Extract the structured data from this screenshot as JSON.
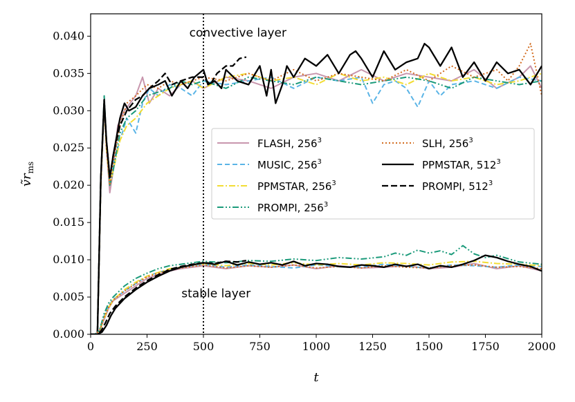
{
  "chart_data": {
    "type": "line",
    "xlabel": "t",
    "ylabel": "ṽrms",
    "xlim": [
      0,
      2000
    ],
    "ylim": [
      0,
      0.043
    ],
    "xticks": [
      0,
      250,
      500,
      750,
      1000,
      1250,
      1500,
      1750,
      2000
    ],
    "xtick_labels": [
      "0",
      "250",
      "500",
      "750",
      "1000",
      "1250",
      "1500",
      "1750",
      "2000"
    ],
    "yticks": [
      0.0,
      0.005,
      0.01,
      0.015,
      0.02,
      0.025,
      0.03,
      0.035,
      0.04
    ],
    "ytick_labels": [
      "0.000",
      "0.005",
      "0.010",
      "0.015",
      "0.020",
      "0.025",
      "0.030",
      "0.035",
      "0.040"
    ],
    "vline_x": 500,
    "annotations": [
      {
        "text": "convective layer",
        "x": 545,
        "y": 0.0405
      },
      {
        "text": "stable layer",
        "x": 510,
        "y": 0.0055
      }
    ],
    "legend_position": "center-right",
    "grid": false,
    "series": [
      {
        "name": "FLASH, 256",
        "sup": "3",
        "layer": "convective",
        "color": "#c896ad",
        "dash": "solid",
        "x": [
          0,
          30,
          45,
          60,
          70,
          85,
          100,
          120,
          150,
          200,
          230,
          260,
          300,
          350,
          400,
          450,
          500,
          600,
          700,
          800,
          900,
          1000,
          1100,
          1200,
          1300,
          1400,
          1500,
          1600,
          1700,
          1800,
          1900,
          1950,
          2000
        ],
        "y": [
          0,
          0,
          0.02,
          0.031,
          0.025,
          0.019,
          0.022,
          0.028,
          0.03,
          0.032,
          0.0345,
          0.031,
          0.033,
          0.032,
          0.0335,
          0.034,
          0.033,
          0.0345,
          0.034,
          0.033,
          0.0345,
          0.035,
          0.034,
          0.0355,
          0.034,
          0.035,
          0.0345,
          0.034,
          0.0355,
          0.033,
          0.0345,
          0.036,
          0.033
        ]
      },
      {
        "name": "MUSIC, 256",
        "sup": "3",
        "layer": "convective",
        "color": "#5ab4e6",
        "dash": "dashed",
        "x": [
          0,
          30,
          45,
          60,
          70,
          85,
          100,
          130,
          160,
          200,
          230,
          260,
          300,
          350,
          400,
          450,
          500,
          600,
          700,
          800,
          900,
          1000,
          1100,
          1200,
          1250,
          1300,
          1350,
          1400,
          1450,
          1500,
          1550,
          1600,
          1700,
          1800,
          1900,
          2000
        ],
        "y": [
          0,
          0,
          0.02,
          0.031,
          0.026,
          0.021,
          0.023,
          0.026,
          0.029,
          0.027,
          0.031,
          0.033,
          0.032,
          0.0335,
          0.033,
          0.032,
          0.034,
          0.0335,
          0.034,
          0.0345,
          0.033,
          0.0345,
          0.034,
          0.0345,
          0.031,
          0.0335,
          0.034,
          0.033,
          0.0305,
          0.034,
          0.032,
          0.0335,
          0.034,
          0.033,
          0.0345,
          0.034
        ]
      },
      {
        "name": "PPMSTAR, 256",
        "sup": "3",
        "layer": "convective",
        "color": "#f2dc32",
        "dash": "dashdot",
        "x": [
          0,
          30,
          45,
          60,
          70,
          85,
          100,
          130,
          160,
          200,
          250,
          300,
          350,
          400,
          450,
          500,
          600,
          700,
          800,
          900,
          1000,
          1100,
          1200,
          1300,
          1400,
          1500,
          1600,
          1700,
          1800,
          1900,
          2000
        ],
        "y": [
          0,
          0,
          0.02,
          0.031,
          0.025,
          0.02,
          0.022,
          0.026,
          0.028,
          0.029,
          0.031,
          0.032,
          0.033,
          0.0335,
          0.034,
          0.033,
          0.0345,
          0.035,
          0.034,
          0.0345,
          0.0335,
          0.035,
          0.034,
          0.0345,
          0.0335,
          0.035,
          0.034,
          0.0345,
          0.0335,
          0.034,
          0.035
        ]
      },
      {
        "name": "PROMPI, 256",
        "sup": "3",
        "layer": "convective",
        "color": "#1a9a7a",
        "dash": "dashdotdot",
        "x": [
          0,
          30,
          45,
          60,
          70,
          85,
          100,
          130,
          160,
          200,
          250,
          300,
          350,
          400,
          450,
          500,
          600,
          700,
          800,
          900,
          1000,
          1100,
          1200,
          1300,
          1400,
          1500,
          1600,
          1700,
          1800,
          1900,
          2000
        ],
        "y": [
          0,
          0,
          0.021,
          0.032,
          0.026,
          0.02,
          0.022,
          0.027,
          0.029,
          0.03,
          0.032,
          0.0325,
          0.033,
          0.034,
          0.0335,
          0.034,
          0.033,
          0.0345,
          0.034,
          0.0335,
          0.0345,
          0.034,
          0.0335,
          0.034,
          0.0345,
          0.034,
          0.033,
          0.0345,
          0.034,
          0.0335,
          0.034
        ]
      },
      {
        "name": "SLH, 256",
        "sup": "3",
        "layer": "convective",
        "color": "#d26b1e",
        "dash": "dotted",
        "x": [
          0,
          30,
          45,
          60,
          70,
          85,
          100,
          130,
          160,
          200,
          250,
          300,
          350,
          400,
          450,
          500,
          600,
          700,
          800,
          900,
          1000,
          1100,
          1200,
          1300,
          1400,
          1500,
          1600,
          1700,
          1800,
          1850,
          1900,
          1950,
          2000
        ],
        "y": [
          0,
          0,
          0.02,
          0.031,
          0.025,
          0.02,
          0.023,
          0.028,
          0.031,
          0.032,
          0.0335,
          0.033,
          0.034,
          0.0335,
          0.034,
          0.0345,
          0.034,
          0.035,
          0.034,
          0.0355,
          0.034,
          0.035,
          0.0345,
          0.034,
          0.0355,
          0.034,
          0.036,
          0.0345,
          0.0355,
          0.034,
          0.036,
          0.039,
          0.032
        ]
      },
      {
        "name": "PPMSTAR, 512",
        "sup": "3",
        "layer": "convective",
        "color": "#000000",
        "dash": "solid",
        "bold": true,
        "x": [
          0,
          30,
          45,
          60,
          70,
          85,
          100,
          130,
          150,
          170,
          200,
          230,
          260,
          300,
          330,
          360,
          400,
          430,
          460,
          500,
          520,
          550,
          580,
          600,
          650,
          700,
          750,
          780,
          800,
          820,
          850,
          870,
          900,
          950,
          1000,
          1050,
          1100,
          1150,
          1175,
          1200,
          1250,
          1300,
          1350,
          1400,
          1450,
          1480,
          1500,
          1550,
          1600,
          1650,
          1700,
          1750,
          1800,
          1850,
          1900,
          1950,
          2000
        ],
        "y": [
          0,
          0,
          0.021,
          0.0315,
          0.026,
          0.021,
          0.024,
          0.029,
          0.031,
          0.03,
          0.0305,
          0.032,
          0.033,
          0.0335,
          0.034,
          0.032,
          0.034,
          0.033,
          0.0345,
          0.0355,
          0.0335,
          0.034,
          0.033,
          0.0355,
          0.034,
          0.0335,
          0.036,
          0.032,
          0.0355,
          0.031,
          0.0335,
          0.036,
          0.0345,
          0.037,
          0.036,
          0.0375,
          0.035,
          0.0375,
          0.038,
          0.037,
          0.0345,
          0.038,
          0.0355,
          0.0365,
          0.037,
          0.039,
          0.0385,
          0.036,
          0.0385,
          0.0345,
          0.0365,
          0.034,
          0.0365,
          0.035,
          0.0355,
          0.0335,
          0.036
        ]
      },
      {
        "name": "PROMPI, 512",
        "sup": "3",
        "layer": "convective",
        "color": "#000000",
        "dash": "longdash",
        "bold": true,
        "x": [
          0,
          30,
          45,
          60,
          70,
          85,
          100,
          130,
          160,
          200,
          230,
          260,
          300,
          330,
          360,
          400,
          450,
          500,
          530,
          560,
          600,
          630,
          660,
          690
        ],
        "y": [
          0,
          0,
          0.021,
          0.031,
          0.026,
          0.021,
          0.024,
          0.028,
          0.03,
          0.0315,
          0.032,
          0.033,
          0.034,
          0.035,
          0.0335,
          0.034,
          0.0345,
          0.0345,
          0.0335,
          0.035,
          0.036,
          0.036,
          0.037,
          0.0372
        ]
      },
      {
        "name": "FLASH, 256",
        "sup": "3",
        "layer": "stable",
        "color": "#c896ad",
        "dash": "solid",
        "x": [
          0,
          20,
          40,
          60,
          80,
          100,
          150,
          200,
          250,
          300,
          350,
          400,
          450,
          500,
          600,
          700,
          800,
          900,
          1000,
          1100,
          1200,
          1300,
          1400,
          1500,
          1600,
          1700,
          1800,
          1900,
          2000
        ],
        "y": [
          0,
          0,
          0.0005,
          0.002,
          0.0035,
          0.0045,
          0.0055,
          0.0065,
          0.0075,
          0.008,
          0.0085,
          0.0088,
          0.009,
          0.0092,
          0.0088,
          0.0092,
          0.009,
          0.0093,
          0.0088,
          0.0092,
          0.0089,
          0.009,
          0.0092,
          0.0088,
          0.009,
          0.0095,
          0.0088,
          0.0092,
          0.0085
        ]
      },
      {
        "name": "MUSIC, 256",
        "sup": "3",
        "layer": "stable",
        "color": "#5ab4e6",
        "dash": "dashed",
        "x": [
          0,
          20,
          40,
          60,
          80,
          100,
          150,
          200,
          250,
          300,
          350,
          400,
          450,
          500,
          600,
          700,
          800,
          900,
          1000,
          1100,
          1200,
          1300,
          1400,
          1500,
          1600,
          1700,
          1800,
          1900,
          2000
        ],
        "y": [
          0,
          0,
          0.0005,
          0.0025,
          0.0038,
          0.0047,
          0.0058,
          0.0068,
          0.0078,
          0.0083,
          0.0087,
          0.009,
          0.0092,
          0.0094,
          0.009,
          0.0093,
          0.0091,
          0.0089,
          0.0093,
          0.0091,
          0.009,
          0.0094,
          0.0091,
          0.0089,
          0.0093,
          0.0092,
          0.009,
          0.0093,
          0.0091
        ]
      },
      {
        "name": "PPMSTAR, 256",
        "sup": "3",
        "layer": "stable",
        "color": "#f2dc32",
        "dash": "dashdot",
        "x": [
          0,
          20,
          40,
          60,
          80,
          100,
          150,
          200,
          250,
          300,
          350,
          400,
          450,
          500,
          600,
          700,
          800,
          900,
          1000,
          1100,
          1200,
          1300,
          1400,
          1500,
          1600,
          1700,
          1800,
          1900,
          2000
        ],
        "y": [
          0,
          0,
          0.0005,
          0.0022,
          0.0036,
          0.0046,
          0.006,
          0.007,
          0.0078,
          0.0083,
          0.0088,
          0.009,
          0.0093,
          0.0095,
          0.0092,
          0.0095,
          0.0093,
          0.0096,
          0.0093,
          0.0095,
          0.0093,
          0.0096,
          0.0095,
          0.0093,
          0.0097,
          0.0098,
          0.0095,
          0.0094,
          0.0092
        ]
      },
      {
        "name": "PROMPI, 256",
        "sup": "3",
        "layer": "stable",
        "color": "#1a9a7a",
        "dash": "dashdotdot",
        "x": [
          0,
          20,
          40,
          60,
          80,
          100,
          150,
          200,
          250,
          300,
          350,
          400,
          450,
          500,
          600,
          700,
          800,
          900,
          1000,
          1100,
          1200,
          1300,
          1350,
          1400,
          1450,
          1500,
          1550,
          1600,
          1650,
          1700,
          1750,
          1800,
          1900,
          2000
        ],
        "y": [
          0,
          0,
          0.0006,
          0.0028,
          0.0042,
          0.005,
          0.0065,
          0.0075,
          0.0082,
          0.0088,
          0.0092,
          0.0094,
          0.0096,
          0.0098,
          0.0096,
          0.0099,
          0.0098,
          0.0101,
          0.0099,
          0.0103,
          0.0101,
          0.0104,
          0.0109,
          0.0106,
          0.0113,
          0.0109,
          0.0112,
          0.0107,
          0.0119,
          0.0108,
          0.0103,
          0.0106,
          0.0097,
          0.0094
        ]
      },
      {
        "name": "SLH, 256",
        "sup": "3",
        "layer": "stable",
        "color": "#d26b1e",
        "dash": "dotted",
        "x": [
          0,
          20,
          40,
          60,
          80,
          100,
          150,
          200,
          250,
          300,
          350,
          400,
          450,
          500,
          600,
          700,
          800,
          900,
          1000,
          1100,
          1200,
          1300,
          1400,
          1500,
          1600,
          1700,
          1800,
          1900,
          2000
        ],
        "y": [
          0,
          0,
          0.0005,
          0.0023,
          0.0037,
          0.0046,
          0.0058,
          0.0068,
          0.0077,
          0.0082,
          0.0086,
          0.0089,
          0.0091,
          0.0093,
          0.0089,
          0.0092,
          0.009,
          0.0093,
          0.0089,
          0.0091,
          0.0089,
          0.0092,
          0.009,
          0.0089,
          0.0092,
          0.0093,
          0.009,
          0.0091,
          0.0088
        ]
      },
      {
        "name": "PPMSTAR, 512",
        "sup": "3",
        "layer": "stable",
        "color": "#000000",
        "dash": "solid",
        "bold": true,
        "x": [
          0,
          30,
          50,
          70,
          90,
          110,
          150,
          200,
          250,
          300,
          350,
          400,
          450,
          500,
          550,
          600,
          650,
          700,
          750,
          800,
          850,
          900,
          950,
          1000,
          1050,
          1100,
          1150,
          1200,
          1250,
          1300,
          1350,
          1400,
          1450,
          1500,
          1550,
          1600,
          1650,
          1700,
          1750,
          1800,
          1850,
          1900,
          1950,
          2000
        ],
        "y": [
          0,
          0,
          0.0003,
          0.0012,
          0.0025,
          0.0035,
          0.0048,
          0.006,
          0.007,
          0.0078,
          0.0085,
          0.009,
          0.0093,
          0.0096,
          0.0094,
          0.0098,
          0.0093,
          0.0097,
          0.0094,
          0.0096,
          0.0093,
          0.0098,
          0.0092,
          0.0095,
          0.0094,
          0.0091,
          0.009,
          0.0093,
          0.0092,
          0.009,
          0.0094,
          0.0091,
          0.0094,
          0.0088,
          0.0092,
          0.009,
          0.0094,
          0.0099,
          0.0106,
          0.0103,
          0.0098,
          0.0094,
          0.0091,
          0.0085
        ]
      },
      {
        "name": "PROMPI, 512",
        "sup": "3",
        "layer": "stable",
        "color": "#000000",
        "dash": "longdash",
        "bold": true,
        "x": [
          0,
          25,
          45,
          65,
          85,
          110,
          150,
          200,
          250,
          300,
          350,
          400,
          450,
          500,
          550,
          600,
          650,
          690
        ],
        "y": [
          0,
          0,
          0.0004,
          0.0015,
          0.0028,
          0.0038,
          0.005,
          0.0062,
          0.0072,
          0.008,
          0.0087,
          0.0091,
          0.0094,
          0.0096,
          0.0095,
          0.0098,
          0.0097,
          0.0099
        ]
      }
    ]
  }
}
